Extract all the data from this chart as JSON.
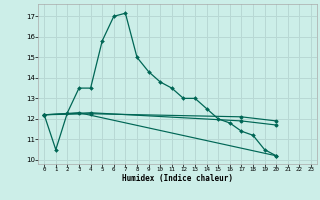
{
  "xlabel": "Humidex (Indice chaleur)",
  "background_color": "#cceee8",
  "grid_color": "#b8d8d4",
  "line_color": "#006655",
  "xlim": [
    -0.5,
    23.5
  ],
  "ylim": [
    9.8,
    17.6
  ],
  "yticks": [
    10,
    11,
    12,
    13,
    14,
    15,
    16,
    17
  ],
  "xticks": [
    0,
    1,
    2,
    3,
    4,
    5,
    6,
    7,
    8,
    9,
    10,
    11,
    12,
    13,
    14,
    15,
    16,
    17,
    18,
    19,
    20,
    21,
    22,
    23
  ],
  "series": [
    [
      0,
      12.2
    ],
    [
      1,
      10.5
    ],
    [
      2,
      12.3
    ],
    [
      3,
      13.5
    ],
    [
      4,
      13.5
    ],
    [
      5,
      15.8
    ],
    [
      6,
      17.0
    ],
    [
      7,
      17.15
    ],
    [
      8,
      15.0
    ],
    [
      9,
      14.3
    ],
    [
      10,
      13.8
    ],
    [
      11,
      13.5
    ],
    [
      12,
      13.0
    ],
    [
      13,
      13.0
    ],
    [
      14,
      12.5
    ],
    [
      15,
      12.0
    ],
    [
      16,
      11.8
    ],
    [
      17,
      11.4
    ],
    [
      18,
      11.2
    ],
    [
      19,
      10.5
    ],
    [
      20,
      10.2
    ]
  ],
  "line2": [
    [
      0,
      12.2
    ],
    [
      3,
      12.3
    ],
    [
      20,
      10.2
    ]
  ],
  "line3": [
    [
      0,
      12.2
    ],
    [
      4,
      12.3
    ],
    [
      17,
      11.9
    ],
    [
      20,
      11.7
    ]
  ],
  "line4": [
    [
      0,
      12.2
    ],
    [
      4,
      12.25
    ],
    [
      17,
      12.1
    ],
    [
      20,
      11.9
    ]
  ]
}
